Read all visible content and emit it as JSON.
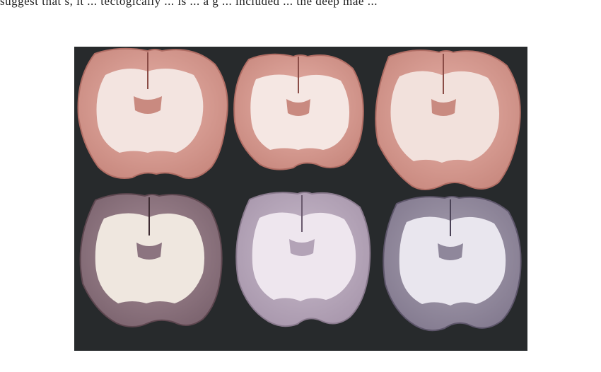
{
  "top_text": "suggest that s, it ... tectogically ... is ... a g ... included ... the deep mae ...",
  "figure": {
    "kind": "photograph",
    "subject": "coronal brain slices",
    "rows": 2,
    "columns": 3
  }
}
